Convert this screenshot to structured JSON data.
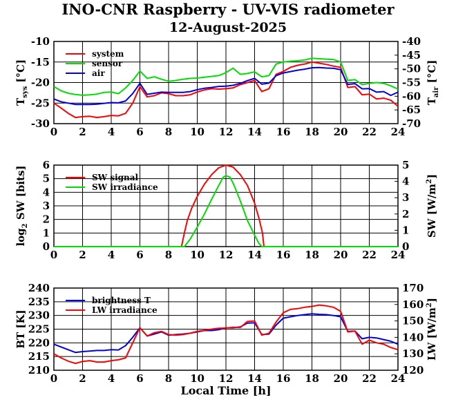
{
  "title": "INO-CNR Raspberry - UV-VIS radiometer",
  "subtitle": "12-August-2025",
  "chart_data": [
    {
      "type": "line",
      "x_ticks": [
        "0",
        "2",
        "4",
        "6",
        "8",
        "10",
        "12",
        "14",
        "16",
        "18",
        "20",
        "22",
        "24"
      ],
      "xlim": [
        0,
        24
      ],
      "ylabel_left": "T",
      "ylabel_left_sub": "sys",
      "ylabel_left_unit": " [°C]",
      "ylabel_right": "T",
      "ylabel_right_sub": "air",
      "ylabel_right_unit": " [°C]",
      "ylim_left": [
        -30,
        -10
      ],
      "ylim_right": [
        -70,
        -40
      ],
      "y_ticks_left": [
        "-10",
        "-15",
        "-20",
        "-25",
        "-30"
      ],
      "y_ticks_right": [
        "-40",
        "-45",
        "-50",
        "-55",
        "-60",
        "-65",
        "-70"
      ],
      "legend": "top-left",
      "series": [
        {
          "name": "system",
          "color": "#ff0000",
          "axis": "left",
          "x": [
            0,
            0.5,
            1,
            1.5,
            2,
            2.5,
            3,
            3.5,
            4,
            4.5,
            5,
            5.5,
            6,
            6.5,
            7,
            7.5,
            8,
            8.5,
            9,
            9.5,
            10,
            10.5,
            11,
            11.5,
            12,
            12.5,
            13,
            13.5,
            14,
            14.5,
            15,
            15.5,
            16,
            16.5,
            17,
            17.5,
            18,
            18.5,
            19,
            19.5,
            20,
            20.5,
            21,
            21.5,
            22,
            22.5,
            23,
            23.5,
            24
          ],
          "y": [
            -25,
            -26.2,
            -27.5,
            -28.5,
            -28.3,
            -28.2,
            -28.5,
            -28.3,
            -28,
            -28.1,
            -27.5,
            -25,
            -21,
            -23.5,
            -23.2,
            -22.5,
            -22.7,
            -23.2,
            -23.2,
            -23,
            -22.3,
            -21.8,
            -21.5,
            -21.6,
            -21.5,
            -21.3,
            -20.5,
            -20,
            -19.5,
            -22.2,
            -21.5,
            -18,
            -17.3,
            -16.3,
            -15.8,
            -15.5,
            -15,
            -15.3,
            -15.6,
            -16,
            -16.3,
            -21.2,
            -21,
            -23,
            -22.8,
            -24,
            -23.8,
            -24.3,
            -25.8
          ]
        },
        {
          "name": "sensor",
          "color": "#00dd00",
          "axis": "left",
          "x": [
            0,
            0.5,
            1,
            1.5,
            2,
            2.5,
            3,
            3.5,
            4,
            4.5,
            5,
            5.5,
            6,
            6.5,
            7,
            7.5,
            8,
            8.5,
            9,
            9.5,
            10,
            10.5,
            11,
            11.5,
            12,
            12.5,
            13,
            13.5,
            14,
            14.5,
            15,
            15.5,
            16,
            16.5,
            17,
            17.5,
            18,
            18.5,
            19,
            19.5,
            20,
            20.5,
            21,
            21.5,
            22,
            22.5,
            23,
            23.5,
            24
          ],
          "y": [
            -21,
            -22,
            -22.6,
            -22.9,
            -23.1,
            -23,
            -22.8,
            -22.4,
            -22.3,
            -22.7,
            -21.3,
            -19.5,
            -17.2,
            -19,
            -18.6,
            -19.2,
            -19.7,
            -19.5,
            -19.2,
            -19,
            -18.9,
            -18.7,
            -18.5,
            -18.3,
            -17.6,
            -16.5,
            -18,
            -17.8,
            -17.4,
            -18.6,
            -18.3,
            -15.5,
            -15,
            -14.8,
            -14.7,
            -14.5,
            -14.1,
            -14.2,
            -14.3,
            -14.4,
            -15,
            -19.5,
            -19.3,
            -20.5,
            -20.2,
            -20,
            -20.2,
            -20.8,
            -21.6
          ]
        },
        {
          "name": "air",
          "color": "#0000dd",
          "axis": "right",
          "x": [
            0,
            0.5,
            1,
            1.5,
            2,
            2.5,
            3,
            3.5,
            4,
            4.5,
            5,
            5.5,
            6,
            6.5,
            7,
            7.5,
            8,
            8.5,
            9,
            9.5,
            10,
            10.5,
            11,
            11.5,
            12,
            12.5,
            13,
            13.5,
            14,
            14.5,
            15,
            15.5,
            16,
            16.5,
            17,
            17.5,
            18,
            18.5,
            19,
            19.5,
            20,
            20.5,
            21,
            21.5,
            22,
            22.5,
            23,
            23.5,
            24
          ],
          "y": [
            -61,
            -62,
            -62.5,
            -63,
            -63,
            -63,
            -62.9,
            -62.6,
            -62.3,
            -62.4,
            -61.7,
            -59,
            -55.3,
            -59.3,
            -58.9,
            -58.5,
            -58.6,
            -58.6,
            -58.6,
            -58.3,
            -57.6,
            -57.1,
            -56.8,
            -56.4,
            -56.3,
            -56,
            -55.3,
            -54.3,
            -53.5,
            -55.6,
            -55.2,
            -52.5,
            -51.5,
            -51,
            -50.5,
            -50.1,
            -49.6,
            -49.5,
            -49.7,
            -49.8,
            -50.3,
            -55.7,
            -55.4,
            -57.3,
            -57.2,
            -58.5,
            -58.3,
            -59.7,
            -58.5
          ]
        }
      ]
    },
    {
      "type": "line",
      "x_ticks": [
        "0",
        "2",
        "4",
        "6",
        "8",
        "10",
        "12",
        "14",
        "16",
        "18",
        "20",
        "22",
        "24"
      ],
      "xlim": [
        0,
        24
      ],
      "ylabel_left": "log",
      "ylabel_left_sub": "2",
      "ylabel_left_unit": " SW [bits]",
      "ylabel_right": "SW [W/m",
      "ylabel_right_sup": "2",
      "ylabel_right_unit": "]",
      "ylim_left": [
        0,
        6
      ],
      "ylim_right": [
        0,
        5
      ],
      "y_ticks_left": [
        "6",
        "5",
        "4",
        "3",
        "2",
        "1",
        "0"
      ],
      "y_ticks_right": [
        "5",
        "4",
        "3",
        "2",
        "1",
        "0"
      ],
      "legend": "top-left",
      "series": [
        {
          "name": "SW signal",
          "color": "#ff0000",
          "axis": "left",
          "x": [
            0,
            8.9,
            9.1,
            9.3,
            9.6,
            10,
            10.5,
            11,
            11.5,
            12,
            12.5,
            13,
            13.5,
            14,
            14.3,
            14.55,
            14.65,
            24
          ],
          "y": [
            0,
            0,
            1.0,
            1.9,
            2.8,
            3.7,
            4.6,
            5.3,
            5.8,
            6.0,
            5.85,
            5.3,
            4.5,
            3.2,
            2.1,
            1.0,
            0,
            0
          ]
        },
        {
          "name": "SW irradiance",
          "color": "#00dd00",
          "axis": "right",
          "x": [
            0,
            9.1,
            9.5,
            10,
            10.5,
            11,
            11.5,
            11.8,
            12,
            12.3,
            12.6,
            13,
            13.5,
            14,
            14.3,
            14.5,
            24
          ],
          "y": [
            0,
            0,
            0.45,
            1.2,
            2.0,
            2.9,
            3.75,
            4.25,
            4.35,
            4.25,
            3.7,
            2.8,
            1.6,
            0.7,
            0.2,
            0,
            0
          ]
        }
      ]
    },
    {
      "type": "line",
      "x_ticks": [
        "0",
        "2",
        "4",
        "6",
        "8",
        "10",
        "12",
        "14",
        "16",
        "18",
        "20",
        "22",
        "24"
      ],
      "xlim": [
        0,
        24
      ],
      "xlabel": "Local Time [h]",
      "ylabel_left": "BT [K]",
      "ylabel_right": "LW [W/m",
      "ylabel_right_sup": "2",
      "ylabel_right_unit": "]",
      "ylim_left": [
        210,
        240
      ],
      "ylim_right": [
        120,
        170
      ],
      "y_ticks_left": [
        "240",
        "235",
        "230",
        "225",
        "220",
        "215",
        "210"
      ],
      "y_ticks_right": [
        "170",
        "160",
        "150",
        "140",
        "130",
        "120"
      ],
      "legend": "top-left",
      "series": [
        {
          "name": "brightness T",
          "color": "#0000dd",
          "axis": "left",
          "x": [
            0,
            0.5,
            1,
            1.5,
            2,
            2.5,
            3,
            3.5,
            4,
            4.5,
            5,
            5.5,
            6,
            6.5,
            7,
            7.5,
            8,
            8.5,
            9,
            9.5,
            10,
            10.5,
            11,
            11.5,
            12,
            12.5,
            13,
            13.5,
            14,
            14.5,
            15,
            15.5,
            16,
            16.5,
            17,
            17.5,
            18,
            18.5,
            19,
            19.5,
            20,
            20.5,
            21,
            21.5,
            22,
            22.5,
            23,
            23.5,
            24
          ],
          "y": [
            219.5,
            218.5,
            217.5,
            216.5,
            216.8,
            217,
            217.2,
            217.2,
            217.5,
            217.4,
            219,
            222,
            225.5,
            222.5,
            223.2,
            224,
            222.8,
            223,
            223.2,
            223.5,
            224,
            224.5,
            224.5,
            224.8,
            225.5,
            225.5,
            225.8,
            227.2,
            227.3,
            223,
            223.2,
            226.5,
            229,
            229.5,
            230,
            230.3,
            230.6,
            230.4,
            230.3,
            230,
            229.5,
            224.2,
            224.3,
            221.5,
            222,
            221.8,
            221.2,
            220.6,
            219.5
          ]
        },
        {
          "name": "LW irradiance",
          "color": "#ff0000",
          "axis": "left",
          "x": [
            0,
            0.5,
            1,
            1.5,
            2,
            2.5,
            3,
            3.5,
            4,
            4.5,
            5,
            5.5,
            6,
            6.5,
            7,
            7.5,
            8,
            8.5,
            9,
            9.5,
            10,
            10.5,
            11,
            11.5,
            12,
            12.5,
            13,
            13.5,
            14,
            14.5,
            15,
            15.5,
            16,
            16.5,
            17,
            17.5,
            18,
            18.5,
            19,
            19.5,
            20,
            20.5,
            21,
            21.5,
            22,
            22.5,
            23,
            23.5,
            24
          ],
          "y": [
            216,
            214.5,
            213.3,
            212.5,
            213.2,
            213.5,
            213,
            213,
            213.5,
            213.8,
            214.5,
            220,
            225.5,
            222.5,
            223.7,
            224.2,
            223,
            222.8,
            223,
            223.5,
            224.2,
            224.6,
            225,
            225.3,
            225.4,
            225.7,
            225.6,
            227.8,
            228,
            222.8,
            223.5,
            227.6,
            231,
            232.2,
            232.5,
            233,
            233.3,
            233.8,
            233.5,
            233,
            231.5,
            224,
            224.3,
            219.5,
            221,
            220,
            219.5,
            218.3,
            217.5
          ]
        }
      ]
    }
  ]
}
